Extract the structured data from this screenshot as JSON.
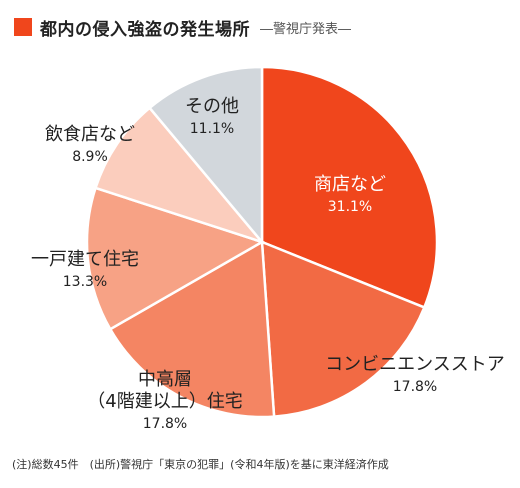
{
  "title": "都内の侵入強盗の発生場所",
  "subtitle": "―警視庁発表―",
  "footnote": "(注)総数45件　(出所)警視庁「東京の犯罪」(令和4年版)を基に東洋経済作成",
  "colors": {
    "accent": "#f0461c",
    "text_dark": "#222222",
    "text_light": "#ffffff",
    "slice_border": "#ffffff"
  },
  "chart_data": {
    "type": "pie",
    "start": "12 o'clock",
    "direction": "clockwise",
    "slices": [
      {
        "label": [
          "商店など"
        ],
        "value": 31.1,
        "display": "31.1%",
        "color": "#f0461c",
        "text_color": "#ffffff"
      },
      {
        "label": [
          "コンビニエンスストア"
        ],
        "value": 17.8,
        "display": "17.8%",
        "color": "#f26a44",
        "text_color": "#222222"
      },
      {
        "label": [
          "中高層",
          "（4階建以上）住宅"
        ],
        "value": 17.8,
        "display": "17.8%",
        "color": "#f48563",
        "text_color": "#222222"
      },
      {
        "label": [
          "一戸建て住宅"
        ],
        "value": 13.3,
        "display": "13.3%",
        "color": "#f7a285",
        "text_color": "#222222"
      },
      {
        "label": [
          "飲食店など"
        ],
        "value": 8.9,
        "display": "8.9%",
        "color": "#fbcdbd",
        "text_color": "#222222"
      },
      {
        "label": [
          "その他"
        ],
        "value": 11.1,
        "display": "11.1%",
        "color": "#d2d7dc",
        "text_color": "#222222"
      }
    ]
  }
}
